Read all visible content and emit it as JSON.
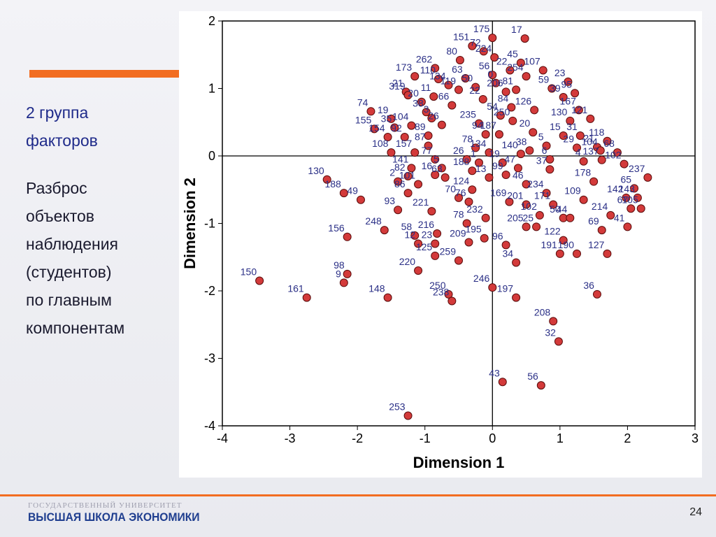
{
  "slide": {
    "heading": [
      "2 группа",
      "факторов"
    ],
    "body": [
      "Разброс",
      "объектов",
      "наблюдения",
      "(студентов)",
      "по главным",
      "компонентам"
    ],
    "footer_line1": "ГОСУДАРСТВЕННЫЙ УНИВЕРСИТЕТ",
    "footer_line2": "ВЫСШАЯ ШКОЛА ЭКОНОМИКИ",
    "page_number": "24"
  },
  "colors": {
    "accent": "#f26d21",
    "point": "#d33a3a",
    "label": "#2a2f86",
    "brand": "#1f3e8f"
  },
  "chart_data": {
    "type": "scatter",
    "xlabel": "Dimension 1",
    "ylabel": "Dimension 2",
    "xlim": [
      -4,
      3
    ],
    "ylim": [
      -4,
      2
    ],
    "xticks": [
      -4,
      -3,
      -2,
      -1,
      0,
      1,
      2,
      3
    ],
    "yticks": [
      -4,
      -3,
      -2,
      -1,
      0,
      1,
      2
    ],
    "grid": false,
    "reference_lines": {
      "x": 0,
      "y": 0
    },
    "points": [
      {
        "label": "175",
        "x": 0.0,
        "y": 1.75
      },
      {
        "label": "17",
        "x": 0.48,
        "y": 1.74
      },
      {
        "label": "151",
        "x": -0.3,
        "y": 1.63
      },
      {
        "label": "72",
        "x": -0.13,
        "y": 1.55
      },
      {
        "label": "224",
        "x": 0.03,
        "y": 1.46
      },
      {
        "label": "80",
        "x": -0.48,
        "y": 1.42
      },
      {
        "label": "45",
        "x": 0.42,
        "y": 1.38
      },
      {
        "label": "262",
        "x": -0.85,
        "y": 1.3
      },
      {
        "label": "22",
        "x": 0.26,
        "y": 1.27
      },
      {
        "label": "107",
        "x": 0.75,
        "y": 1.27
      },
      {
        "label": "173",
        "x": -1.15,
        "y": 1.18
      },
      {
        "label": "110",
        "x": -0.8,
        "y": 1.14
      },
      {
        "label": "56",
        "x": 0.0,
        "y": 1.2
      },
      {
        "label": "254",
        "x": 0.5,
        "y": 1.18
      },
      {
        "label": "23",
        "x": 1.12,
        "y": 1.1
      },
      {
        "label": "134",
        "x": -0.65,
        "y": 1.05
      },
      {
        "label": "63",
        "x": -0.4,
        "y": 1.15
      },
      {
        "label": "0",
        "x": 0.05,
        "y": 1.08
      },
      {
        "label": "21",
        "x": -1.28,
        "y": 0.95
      },
      {
        "label": "119",
        "x": -0.5,
        "y": 0.98
      },
      {
        "label": "50",
        "x": -0.25,
        "y": 1.02
      },
      {
        "label": "59",
        "x": 0.88,
        "y": 1.0
      },
      {
        "label": "95",
        "x": 1.22,
        "y": 0.93
      },
      {
        "label": "319",
        "x": -1.25,
        "y": 0.9
      },
      {
        "label": "206",
        "x": 0.2,
        "y": 0.95
      },
      {
        "label": "81",
        "x": 0.35,
        "y": 0.98
      },
      {
        "label": "39",
        "x": 1.05,
        "y": 0.87
      },
      {
        "label": "11",
        "x": -0.87,
        "y": 0.88
      },
      {
        "label": "22",
        "x": -0.14,
        "y": 0.84
      },
      {
        "label": "20",
        "x": -1.05,
        "y": 0.8
      },
      {
        "label": "66",
        "x": -0.6,
        "y": 0.75
      },
      {
        "label": "84",
        "x": 0.28,
        "y": 0.72
      },
      {
        "label": "167",
        "x": 1.28,
        "y": 0.68
      },
      {
        "label": "74",
        "x": -1.8,
        "y": 0.66
      },
      {
        "label": "38",
        "x": -0.98,
        "y": 0.65
      },
      {
        "label": "126",
        "x": 0.62,
        "y": 0.68
      },
      {
        "label": "19",
        "x": -1.5,
        "y": 0.55
      },
      {
        "label": "3",
        "x": -0.9,
        "y": 0.56
      },
      {
        "label": "54",
        "x": 0.12,
        "y": 0.6
      },
      {
        "label": "121",
        "x": 1.45,
        "y": 0.55
      },
      {
        "label": "35",
        "x": -1.45,
        "y": 0.42
      },
      {
        "label": "104",
        "x": -1.2,
        "y": 0.45
      },
      {
        "label": "26",
        "x": -0.75,
        "y": 0.46
      },
      {
        "label": "235",
        "x": -0.2,
        "y": 0.48
      },
      {
        "label": "250",
        "x": 0.3,
        "y": 0.52
      },
      {
        "label": "130",
        "x": 1.15,
        "y": 0.52
      },
      {
        "label": "155",
        "x": -1.75,
        "y": 0.4
      },
      {
        "label": "154",
        "x": -1.55,
        "y": 0.28
      },
      {
        "label": "92",
        "x": -1.3,
        "y": 0.28
      },
      {
        "label": "89",
        "x": -0.95,
        "y": 0.3
      },
      {
        "label": "94",
        "x": -0.1,
        "y": 0.32
      },
      {
        "label": "187",
        "x": 0.1,
        "y": 0.32
      },
      {
        "label": "20",
        "x": 0.6,
        "y": 0.35
      },
      {
        "label": "31",
        "x": 1.3,
        "y": 0.3
      },
      {
        "label": "15",
        "x": 1.05,
        "y": 0.3
      },
      {
        "label": "118",
        "x": 1.7,
        "y": 0.22
      },
      {
        "label": "87",
        "x": -0.95,
        "y": 0.15
      },
      {
        "label": "29",
        "x": 1.25,
        "y": 0.12
      },
      {
        "label": "5",
        "x": 0.8,
        "y": 0.15
      },
      {
        "label": "21",
        "x": 1.55,
        "y": 0.13
      },
      {
        "label": "104",
        "x": 1.6,
        "y": 0.08
      },
      {
        "label": "68",
        "x": 1.85,
        "y": 0.05
      },
      {
        "label": "108",
        "x": -1.5,
        "y": 0.05
      },
      {
        "label": "157",
        "x": -1.15,
        "y": 0.05
      },
      {
        "label": "78",
        "x": -0.25,
        "y": 0.12
      },
      {
        "label": "134",
        "x": -0.05,
        "y": 0.05
      },
      {
        "label": "38",
        "x": 0.55,
        "y": 0.08
      },
      {
        "label": "140",
        "x": 0.42,
        "y": 0.03
      },
      {
        "label": "77",
        "x": -0.85,
        "y": -0.05
      },
      {
        "label": "26",
        "x": -0.38,
        "y": -0.05
      },
      {
        "label": "1",
        "x": -0.2,
        "y": -0.1
      },
      {
        "label": "19",
        "x": 0.15,
        "y": -0.1
      },
      {
        "label": "6",
        "x": 0.85,
        "y": -0.05
      },
      {
        "label": "4",
        "x": 1.35,
        "y": -0.08
      },
      {
        "label": "137",
        "x": 1.62,
        "y": -0.06
      },
      {
        "label": "102",
        "x": 1.95,
        "y": -0.12
      },
      {
        "label": "237",
        "x": 2.3,
        "y": -0.32
      },
      {
        "label": "141",
        "x": -1.2,
        "y": -0.18
      },
      {
        "label": "5",
        "x": -0.75,
        "y": -0.18
      },
      {
        "label": "188",
        "x": -0.3,
        "y": -0.22
      },
      {
        "label": "47",
        "x": 0.38,
        "y": -0.18
      },
      {
        "label": "37",
        "x": 0.85,
        "y": -0.2
      },
      {
        "label": "130",
        "x": -2.45,
        "y": -0.35
      },
      {
        "label": "82",
        "x": -1.25,
        "y": -0.3
      },
      {
        "label": "16",
        "x": -0.85,
        "y": -0.28
      },
      {
        "label": "63",
        "x": -0.7,
        "y": -0.32
      },
      {
        "label": "13",
        "x": -0.05,
        "y": -0.32
      },
      {
        "label": "99",
        "x": 0.2,
        "y": -0.28
      },
      {
        "label": "188",
        "x": -2.2,
        "y": -0.55
      },
      {
        "label": "2",
        "x": -1.4,
        "y": -0.38
      },
      {
        "label": "101",
        "x": -1.1,
        "y": -0.42
      },
      {
        "label": "46",
        "x": 0.5,
        "y": -0.42
      },
      {
        "label": "178",
        "x": 1.5,
        "y": -0.38
      },
      {
        "label": "65",
        "x": 2.1,
        "y": -0.48
      },
      {
        "label": "86",
        "x": -1.25,
        "y": -0.55
      },
      {
        "label": "124",
        "x": -0.3,
        "y": -0.5
      },
      {
        "label": "234",
        "x": 0.8,
        "y": -0.55
      },
      {
        "label": "142",
        "x": 1.98,
        "y": -0.62
      },
      {
        "label": "143",
        "x": 2.15,
        "y": -0.62
      },
      {
        "label": "109",
        "x": 1.35,
        "y": -0.65
      },
      {
        "label": "70",
        "x": -0.5,
        "y": -0.62
      },
      {
        "label": "76",
        "x": -0.35,
        "y": -0.68
      },
      {
        "label": "169",
        "x": 0.25,
        "y": -0.68
      },
      {
        "label": "201",
        "x": 0.5,
        "y": -0.72
      },
      {
        "label": "171",
        "x": 0.9,
        "y": -0.72
      },
      {
        "label": "67",
        "x": 2.05,
        "y": -0.78
      },
      {
        "label": "105",
        "x": 2.2,
        "y": -0.78
      },
      {
        "label": "49",
        "x": -1.95,
        "y": -0.65
      },
      {
        "label": "93",
        "x": -1.4,
        "y": -0.8
      },
      {
        "label": "221",
        "x": -0.9,
        "y": -0.82
      },
      {
        "label": "102",
        "x": 0.7,
        "y": -0.88
      },
      {
        "label": "50",
        "x": 1.05,
        "y": -0.92
      },
      {
        "label": "44",
        "x": 1.15,
        "y": -0.92
      },
      {
        "label": "214",
        "x": 1.75,
        "y": -0.88
      },
      {
        "label": "232",
        "x": -0.1,
        "y": -0.92
      },
      {
        "label": "78",
        "x": -0.38,
        "y": -1.0
      },
      {
        "label": "205",
        "x": 0.5,
        "y": -1.05
      },
      {
        "label": "25",
        "x": 0.65,
        "y": -1.05
      },
      {
        "label": "248",
        "x": -1.6,
        "y": -1.1
      },
      {
        "label": "58",
        "x": -1.15,
        "y": -1.18
      },
      {
        "label": "216",
        "x": -0.82,
        "y": -1.15
      },
      {
        "label": "69",
        "x": 1.62,
        "y": -1.1
      },
      {
        "label": "41",
        "x": 2.0,
        "y": -1.05
      },
      {
        "label": "156",
        "x": -2.15,
        "y": -1.2
      },
      {
        "label": "12",
        "x": -1.1,
        "y": -1.3
      },
      {
        "label": "23",
        "x": -0.85,
        "y": -1.3
      },
      {
        "label": "209",
        "x": -0.35,
        "y": -1.28
      },
      {
        "label": "195",
        "x": -0.12,
        "y": -1.22
      },
      {
        "label": "122",
        "x": 1.05,
        "y": -1.25
      },
      {
        "label": "96",
        "x": 0.2,
        "y": -1.32
      },
      {
        "label": "125",
        "x": -0.85,
        "y": -1.48
      },
      {
        "label": "259",
        "x": -0.5,
        "y": -1.55
      },
      {
        "label": "191",
        "x": 1.0,
        "y": -1.45
      },
      {
        "label": "190",
        "x": 1.25,
        "y": -1.45
      },
      {
        "label": "127",
        "x": 1.7,
        "y": -1.45
      },
      {
        "label": "34",
        "x": 0.35,
        "y": -1.58
      },
      {
        "label": "98",
        "x": -2.15,
        "y": -1.75
      },
      {
        "label": "220",
        "x": -1.1,
        "y": -1.7
      },
      {
        "label": "150",
        "x": -3.45,
        "y": -1.85
      },
      {
        "label": "161",
        "x": -2.75,
        "y": -2.1
      },
      {
        "label": "9",
        "x": -2.2,
        "y": -1.88
      },
      {
        "label": "148",
        "x": -1.55,
        "y": -2.1
      },
      {
        "label": "250",
        "x": -0.65,
        "y": -2.05
      },
      {
        "label": "238",
        "x": -0.6,
        "y": -2.15
      },
      {
        "label": "246",
        "x": 0.0,
        "y": -1.95
      },
      {
        "label": "197",
        "x": 0.35,
        "y": -2.1
      },
      {
        "label": "36",
        "x": 1.55,
        "y": -2.05
      },
      {
        "label": "208",
        "x": 0.9,
        "y": -2.45
      },
      {
        "label": "32",
        "x": 0.98,
        "y": -2.75
      },
      {
        "label": "43",
        "x": 0.15,
        "y": -3.35
      },
      {
        "label": "56",
        "x": 0.72,
        "y": -3.4
      },
      {
        "label": "253",
        "x": -1.25,
        "y": -3.85
      }
    ]
  }
}
